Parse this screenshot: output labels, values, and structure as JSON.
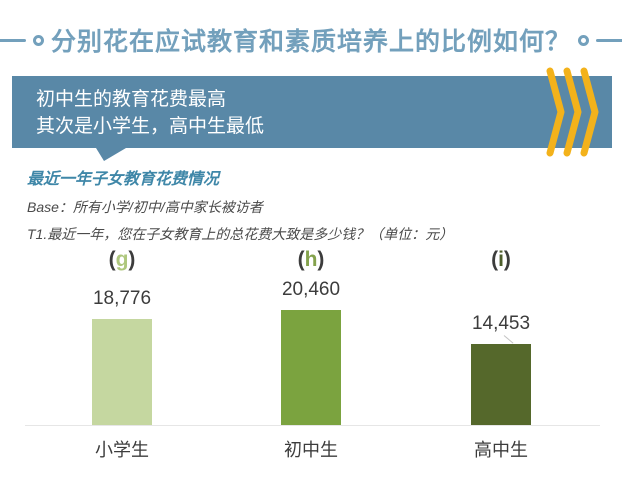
{
  "header": {
    "title": "分别花在应试教育和素质培养上的比例如何？",
    "accent_color": "#73a0bc"
  },
  "banner": {
    "line1": "初中生的教育花费最高",
    "line2": "其次是小学生，高中生最低",
    "bg_color": "#5988a7",
    "text_color": "#ffffff",
    "chevron_color": "#f3b21b"
  },
  "notes": {
    "subtitle": "最近一年子女教育花费情况",
    "subtitle_color": "#3f87a8",
    "base": "Base：所有小学/初中/高中家长被访者",
    "question": "T1.最近一年，您在子女教育上的总花费大致是多少钱？（单位：元）"
  },
  "chart_data": {
    "type": "bar",
    "title": "最近一年子女教育花费情况",
    "unit": "元",
    "categories": [
      "小学生",
      "初中生",
      "高中生"
    ],
    "values": [
      18776,
      20460,
      14453
    ],
    "value_labels": [
      "18,776",
      "20,460",
      "14,453"
    ],
    "group_letters": [
      "g",
      "h",
      "i"
    ],
    "bar_colors": [
      "#c5d7a0",
      "#7ba33f",
      "#55682b"
    ],
    "letter_colors": [
      "#aec77d",
      "#84a24c",
      "#4d5e2b"
    ],
    "label_color": "#3c3c3c",
    "ylim": [
      0,
      21000
    ],
    "grid": false,
    "legend": false
  }
}
